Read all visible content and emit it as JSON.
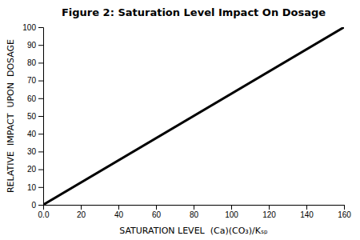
{
  "chart_data": {
    "type": "line",
    "title": "Figure 2: Saturation Level Impact On Dosage",
    "xlabel": "SATURATION LEVEL  (Ca)(CO₃)/Kₛₚ",
    "ylabel": "RELATIVE  IMPACT  UPON  DOSAGE",
    "x": [
      0,
      160
    ],
    "values": [
      0,
      100
    ],
    "color": "#000000",
    "xlim": [
      0,
      160
    ],
    "ylim": [
      0,
      100
    ],
    "xticks": [
      {
        "value": 0,
        "label": "0.0"
      },
      20,
      40,
      60,
      80,
      100,
      120,
      140,
      160
    ],
    "yticks": [
      0,
      10,
      20,
      30,
      40,
      50,
      60,
      70,
      80,
      90,
      100
    ],
    "grid": false
  }
}
